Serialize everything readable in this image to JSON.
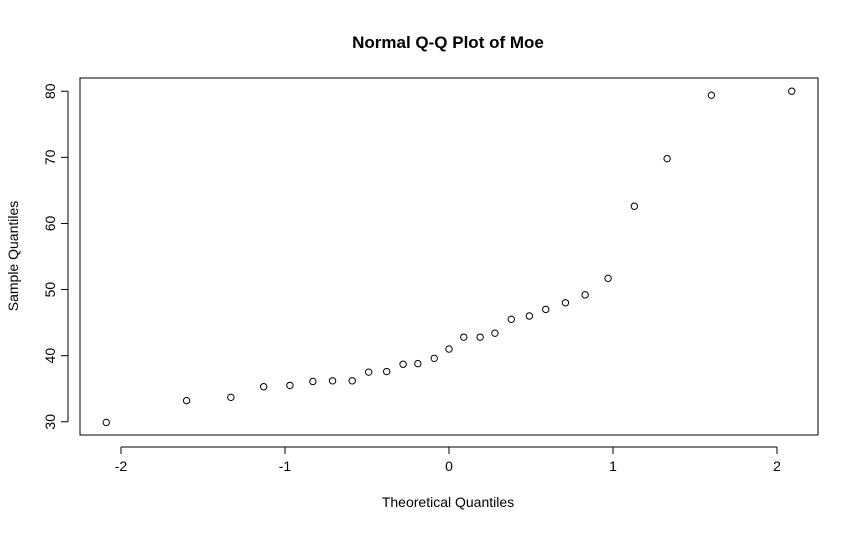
{
  "chart_data": {
    "type": "scatter",
    "title": "Normal Q-Q Plot of Moe",
    "xlabel": "Theoretical Quantiles",
    "ylabel": "Sample Quantiles",
    "xlim": [
      -2.25,
      2.25
    ],
    "ylim": [
      28,
      82
    ],
    "xticks": [
      -2,
      -1,
      0,
      1,
      2
    ],
    "xtick_labels": [
      "-2",
      "-1",
      "0",
      "1",
      "2"
    ],
    "yticks": [
      30,
      40,
      50,
      60,
      70,
      80
    ],
    "ytick_labels": [
      "30",
      "40",
      "50",
      "60",
      "70",
      "80"
    ],
    "grid": false,
    "legend": "none",
    "marker": "open-circle",
    "points": [
      {
        "x": -2.09,
        "y": 29.9
      },
      {
        "x": -1.6,
        "y": 33.2
      },
      {
        "x": -1.33,
        "y": 33.7
      },
      {
        "x": -1.13,
        "y": 35.3
      },
      {
        "x": -0.97,
        "y": 35.5
      },
      {
        "x": -0.83,
        "y": 36.1
      },
      {
        "x": -0.71,
        "y": 36.2
      },
      {
        "x": -0.59,
        "y": 36.2
      },
      {
        "x": -0.49,
        "y": 37.5
      },
      {
        "x": -0.38,
        "y": 37.6
      },
      {
        "x": -0.28,
        "y": 38.7
      },
      {
        "x": -0.19,
        "y": 38.8
      },
      {
        "x": -0.09,
        "y": 39.6
      },
      {
        "x": 0.0,
        "y": 41.0
      },
      {
        "x": 0.09,
        "y": 42.8
      },
      {
        "x": 0.19,
        "y": 42.8
      },
      {
        "x": 0.28,
        "y": 43.4
      },
      {
        "x": 0.38,
        "y": 45.5
      },
      {
        "x": 0.49,
        "y": 46.0
      },
      {
        "x": 0.59,
        "y": 47.0
      },
      {
        "x": 0.71,
        "y": 48.0
      },
      {
        "x": 0.83,
        "y": 49.2
      },
      {
        "x": 0.97,
        "y": 51.7
      },
      {
        "x": 1.13,
        "y": 62.6
      },
      {
        "x": 1.33,
        "y": 69.8
      },
      {
        "x": 1.6,
        "y": 79.4
      },
      {
        "x": 2.09,
        "y": 80.0
      }
    ]
  }
}
